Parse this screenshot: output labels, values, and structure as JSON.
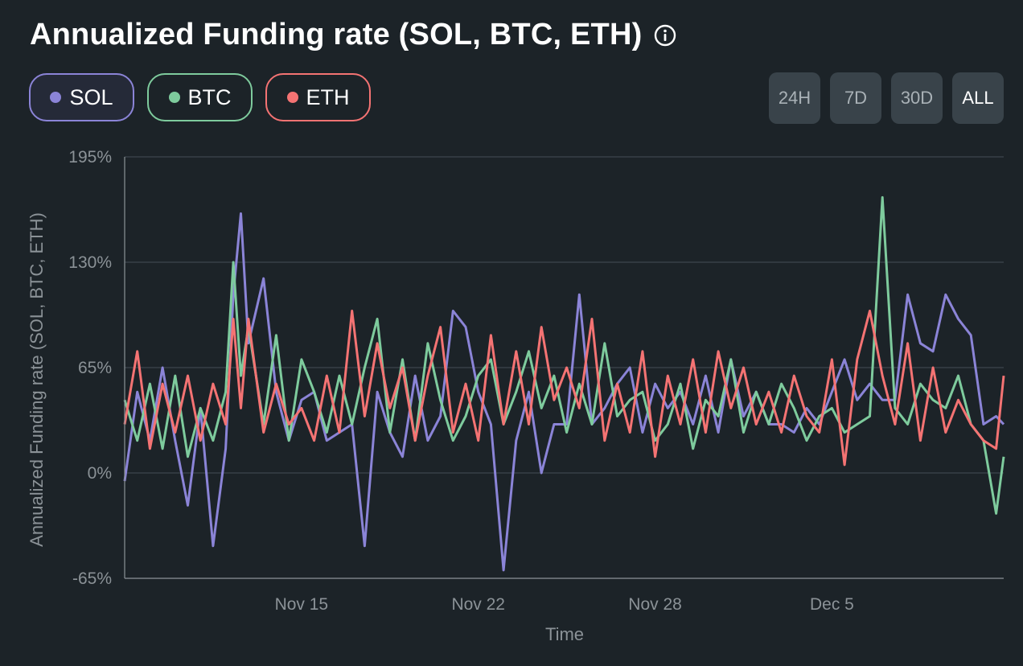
{
  "header": {
    "title": "Annualized Funding rate (SOL, BTC, ETH)",
    "info_icon": "info-icon"
  },
  "series_toggles": [
    {
      "label": "SOL",
      "color": "#8b84d7"
    },
    {
      "label": "BTC",
      "color": "#7ecb9d"
    },
    {
      "label": "ETH",
      "color": "#f47373"
    }
  ],
  "range_buttons": [
    {
      "label": "24H",
      "active": false
    },
    {
      "label": "7D",
      "active": false
    },
    {
      "label": "30D",
      "active": false
    },
    {
      "label": "ALL",
      "active": true
    }
  ],
  "chart_data": {
    "type": "line",
    "title": "Annualized Funding rate (SOL, BTC, ETH)",
    "xlabel": "Time",
    "ylabel": "Annualized Funding rate (SOL, BTC, ETH)",
    "ylim": [
      -65,
      195
    ],
    "yticks": [
      -65,
      0,
      65,
      130,
      195
    ],
    "ytick_labels": [
      "-65%",
      "0%",
      "65%",
      "130%",
      "195%"
    ],
    "x_range_days": [
      8.0,
      42.8
    ],
    "xticks": [
      15,
      22,
      29,
      36
    ],
    "xtick_labels": [
      "Nov 15",
      "Nov 22",
      "Nov 28",
      "Dec 5"
    ],
    "grid": true,
    "series": [
      {
        "name": "SOL",
        "color": "#8b84d7",
        "x": [
          8.0,
          8.5,
          9.0,
          9.5,
          10.0,
          10.5,
          11.0,
          11.5,
          12.0,
          12.3,
          12.6,
          12.9,
          13.5,
          14.0,
          14.5,
          15.0,
          15.5,
          16.0,
          16.5,
          17.0,
          17.5,
          18.0,
          18.5,
          19.0,
          19.5,
          20.0,
          20.5,
          21.0,
          21.5,
          22.0,
          22.5,
          23.0,
          23.5,
          24.0,
          24.5,
          25.0,
          25.5,
          26.0,
          26.5,
          27.0,
          27.5,
          28.0,
          28.5,
          29.0,
          29.5,
          30.0,
          30.5,
          31.0,
          31.5,
          32.0,
          32.5,
          33.0,
          33.5,
          34.0,
          34.5,
          35.0,
          35.5,
          36.0,
          36.5,
          37.0,
          37.5,
          38.0,
          38.5,
          39.0,
          39.5,
          40.0,
          40.5,
          41.0,
          41.5,
          42.0,
          42.5,
          42.8
        ],
        "values": [
          -5,
          50,
          20,
          65,
          20,
          -20,
          40,
          -45,
          15,
          110,
          160,
          80,
          120,
          50,
          20,
          45,
          50,
          20,
          25,
          30,
          -45,
          50,
          25,
          10,
          60,
          20,
          35,
          100,
          90,
          50,
          30,
          -60,
          20,
          50,
          0,
          30,
          30,
          110,
          30,
          40,
          55,
          65,
          25,
          55,
          40,
          50,
          30,
          60,
          25,
          70,
          35,
          50,
          30,
          30,
          25,
          40,
          30,
          50,
          70,
          45,
          55,
          45,
          45,
          110,
          80,
          75,
          110,
          95,
          85,
          30,
          35,
          30
        ]
      },
      {
        "name": "BTC",
        "color": "#7ecb9d",
        "x": [
          8.0,
          8.5,
          9.0,
          9.5,
          10.0,
          10.5,
          11.0,
          11.5,
          12.0,
          12.3,
          12.6,
          12.9,
          13.5,
          14.0,
          14.5,
          15.0,
          15.5,
          16.0,
          16.5,
          17.0,
          17.5,
          18.0,
          18.5,
          19.0,
          19.5,
          20.0,
          20.5,
          21.0,
          21.5,
          22.0,
          22.5,
          23.0,
          23.5,
          24.0,
          24.5,
          25.0,
          25.5,
          26.0,
          26.5,
          27.0,
          27.5,
          28.0,
          28.5,
          29.0,
          29.5,
          30.0,
          30.5,
          31.0,
          31.5,
          32.0,
          32.5,
          33.0,
          33.5,
          34.0,
          34.5,
          35.0,
          35.5,
          36.0,
          36.5,
          37.0,
          37.5,
          38.0,
          38.5,
          39.0,
          39.5,
          40.0,
          40.5,
          41.0,
          41.5,
          42.0,
          42.5,
          42.8
        ],
        "values": [
          45,
          20,
          55,
          15,
          60,
          10,
          40,
          20,
          50,
          130,
          60,
          90,
          30,
          85,
          20,
          70,
          50,
          25,
          60,
          30,
          65,
          95,
          25,
          70,
          20,
          80,
          45,
          20,
          35,
          60,
          70,
          30,
          50,
          75,
          40,
          60,
          25,
          55,
          30,
          80,
          35,
          45,
          50,
          20,
          30,
          55,
          15,
          45,
          35,
          70,
          25,
          50,
          30,
          55,
          40,
          20,
          35,
          40,
          25,
          30,
          35,
          170,
          40,
          30,
          55,
          45,
          40,
          60,
          30,
          20,
          -25,
          10
        ]
      },
      {
        "name": "ETH",
        "color": "#f47373",
        "x": [
          8.0,
          8.5,
          9.0,
          9.5,
          10.0,
          10.5,
          11.0,
          11.5,
          12.0,
          12.3,
          12.6,
          12.9,
          13.5,
          14.0,
          14.5,
          15.0,
          15.5,
          16.0,
          16.5,
          17.0,
          17.5,
          18.0,
          18.5,
          19.0,
          19.5,
          20.0,
          20.5,
          21.0,
          21.5,
          22.0,
          22.5,
          23.0,
          23.5,
          24.0,
          24.5,
          25.0,
          25.5,
          26.0,
          26.5,
          27.0,
          27.5,
          28.0,
          28.5,
          29.0,
          29.5,
          30.0,
          30.5,
          31.0,
          31.5,
          32.0,
          32.5,
          33.0,
          33.5,
          34.0,
          34.5,
          35.0,
          35.5,
          36.0,
          36.5,
          37.0,
          37.5,
          38.0,
          38.5,
          39.0,
          39.5,
          40.0,
          40.5,
          41.0,
          41.5,
          42.0,
          42.5,
          42.8
        ],
        "values": [
          30,
          75,
          15,
          55,
          25,
          60,
          20,
          55,
          30,
          95,
          40,
          95,
          25,
          55,
          30,
          40,
          20,
          60,
          25,
          100,
          35,
          80,
          40,
          65,
          20,
          60,
          90,
          25,
          55,
          20,
          85,
          30,
          75,
          30,
          90,
          45,
          65,
          40,
          95,
          20,
          55,
          25,
          75,
          10,
          60,
          30,
          70,
          25,
          75,
          40,
          65,
          30,
          50,
          25,
          60,
          35,
          25,
          70,
          5,
          70,
          100,
          60,
          30,
          80,
          20,
          65,
          25,
          45,
          30,
          20,
          15,
          60
        ]
      }
    ]
  }
}
